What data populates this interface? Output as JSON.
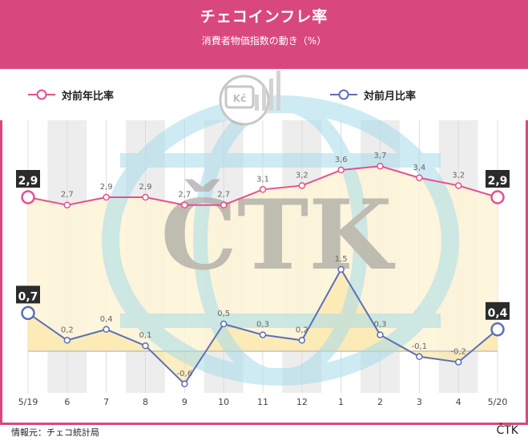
{
  "header": {
    "title": "チェコインフレ率",
    "subtitle": "消費者物価指数の動き（%）"
  },
  "legend": {
    "yoy_label": "対前年比率",
    "mom_label": "対前月比率"
  },
  "footer": {
    "source": "情報元：チェコ統計局",
    "brand": "ČTK"
  },
  "watermark": {
    "text": "ČTK",
    "badge_text": "Kč"
  },
  "colors": {
    "header_bg": "#d8487f",
    "yoy_line": "#e8508d",
    "mom_line": "#5b6fb8",
    "fill": "#fdf3d6",
    "band": "#ededed"
  },
  "chart_data": {
    "type": "line",
    "categories": [
      "5/19",
      "6",
      "7",
      "8",
      "9",
      "10",
      "11",
      "12",
      "1",
      "2",
      "3",
      "4",
      "5/20"
    ],
    "series": [
      {
        "name": "対前年比率",
        "values": [
          2.9,
          2.7,
          2.9,
          2.9,
          2.7,
          2.7,
          3.1,
          3.2,
          3.6,
          3.7,
          3.4,
          3.2,
          2.9
        ],
        "labels": [
          "2,9",
          "2,7",
          "2,9",
          "2,9",
          "2,7",
          "2,7",
          "3,1",
          "3,2",
          "3,6",
          "3,7",
          "3,4",
          "3,2",
          "2,9"
        ],
        "color": "#e8508d"
      },
      {
        "name": "対前月比率",
        "values": [
          0.7,
          0.2,
          0.4,
          0.1,
          -0.6,
          0.5,
          0.3,
          0.2,
          1.5,
          0.3,
          -0.1,
          -0.2,
          0.4
        ],
        "labels": [
          "0,7",
          "0,2",
          "0,4",
          "0,1",
          "-0,6",
          "0,5",
          "0,3",
          "0,2",
          "1,5",
          "0,3",
          "-0,1",
          "-0,2",
          "0,4"
        ],
        "color": "#5b6fb8"
      }
    ],
    "grid": "alternating vertical bands",
    "legend_position": "top"
  }
}
